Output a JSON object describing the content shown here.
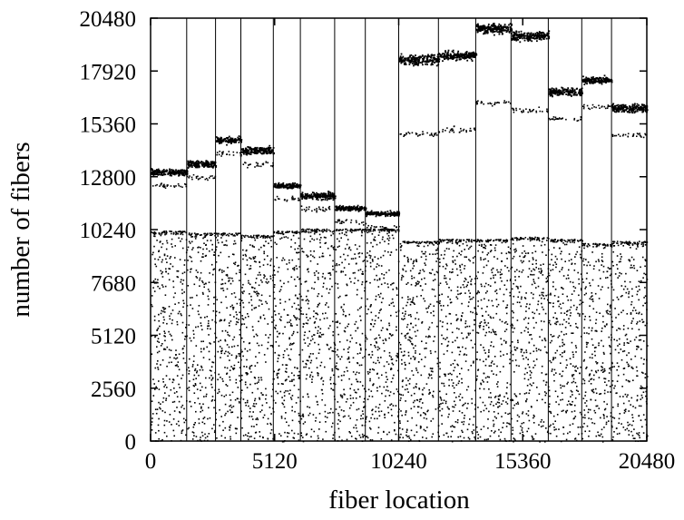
{
  "chart_data": {
    "type": "scatter",
    "title": "",
    "xlabel": "fiber location",
    "ylabel": "number of fibers",
    "xlim": [
      0,
      20480
    ],
    "ylim": [
      0,
      20480
    ],
    "xticks": [
      0,
      5120,
      10240,
      15360,
      20480
    ],
    "yticks": [
      0,
      2560,
      5120,
      7680,
      10240,
      12800,
      15360,
      17920,
      20480
    ],
    "xtick_labels": [
      "0",
      "5120",
      "10240",
      "15360",
      "20480"
    ],
    "ytick_labels": [
      "0",
      "2560",
      "5120",
      "7680",
      "10240",
      "12800",
      "15360",
      "17920",
      "20480"
    ],
    "grid": false,
    "legend": "none",
    "segment_boundaries": [
      1489,
      2681,
      3724,
      5064,
      6181,
      7596,
      8864,
      10240,
      11880,
      13420,
      14877,
      16413,
      17795,
      19022,
      20480
    ],
    "segments": [
      {
        "x_range": [
          0,
          1489
        ],
        "scatter_top": 10200,
        "band_center": 13050,
        "band_width": 450
      },
      {
        "x_range": [
          1489,
          2681
        ],
        "scatter_top": 10100,
        "band_center": 13450,
        "band_width": 450
      },
      {
        "x_range": [
          2681,
          3724
        ],
        "scatter_top": 10100,
        "band_center": 14600,
        "band_width": 400
      },
      {
        "x_range": [
          3724,
          5064
        ],
        "scatter_top": 10000,
        "band_center": 14100,
        "band_width": 500
      },
      {
        "x_range": [
          5064,
          6181
        ],
        "scatter_top": 10200,
        "band_center": 12400,
        "band_width": 350
      },
      {
        "x_range": [
          6181,
          7596
        ],
        "scatter_top": 10300,
        "band_center": 11900,
        "band_width": 450
      },
      {
        "x_range": [
          7596,
          8864
        ],
        "scatter_top": 10300,
        "band_center": 11300,
        "band_width": 350
      },
      {
        "x_range": [
          8864,
          10240
        ],
        "scatter_top": 10300,
        "band_center": 11050,
        "band_width": 300
      },
      {
        "x_range": [
          10240,
          11880
        ],
        "scatter_top": 9700,
        "band_center": 18500,
        "band_width": 750
      },
      {
        "x_range": [
          11880,
          13420
        ],
        "scatter_top": 9800,
        "band_center": 18700,
        "band_width": 600
      },
      {
        "x_range": [
          13420,
          14877
        ],
        "scatter_top": 9800,
        "band_center": 20000,
        "band_width": 650
      },
      {
        "x_range": [
          14877,
          16413
        ],
        "scatter_top": 9900,
        "band_center": 19650,
        "band_width": 650
      },
      {
        "x_range": [
          16413,
          17795
        ],
        "scatter_top": 9800,
        "band_center": 16950,
        "band_width": 550
      },
      {
        "x_range": [
          17795,
          19022
        ],
        "scatter_top": 9600,
        "band_center": 17500,
        "band_width": 450
      },
      {
        "x_range": [
          19022,
          20480
        ],
        "scatter_top": 9700,
        "band_center": 16150,
        "band_width": 600
      }
    ]
  }
}
